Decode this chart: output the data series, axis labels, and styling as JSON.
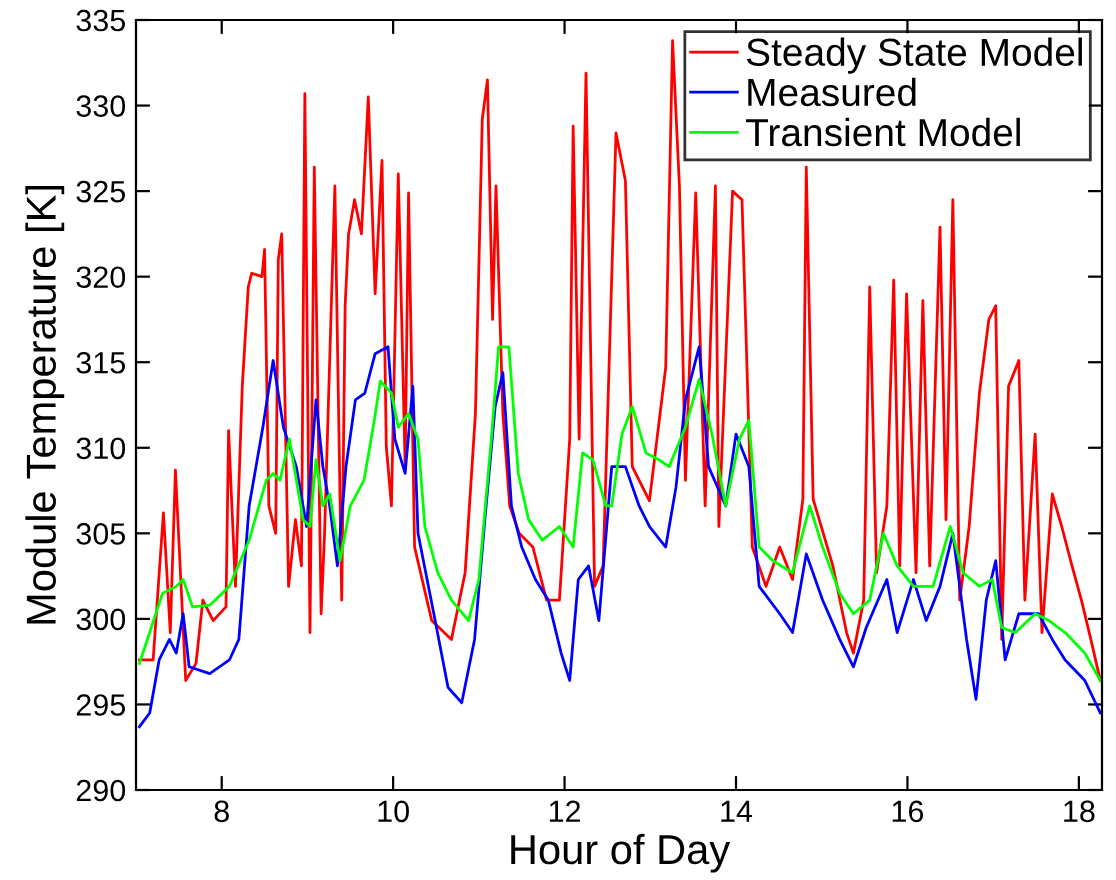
{
  "chart_data": {
    "type": "line",
    "xlabel": "Hour of Day",
    "ylabel": "Module Temperature [K]",
    "xlim": [
      7,
      18.27
    ],
    "ylim": [
      290,
      335
    ],
    "xticks": [
      8,
      10,
      12,
      14,
      16,
      18
    ],
    "yticks": [
      290,
      295,
      300,
      305,
      310,
      315,
      320,
      325,
      330,
      335
    ],
    "grid": false,
    "legend": "top right",
    "marker": "none",
    "line_style": "solid",
    "series": [
      {
        "name": "Steady State Model",
        "color": "#ff0000",
        "x": [
          7.04,
          7.2,
          7.32,
          7.4,
          7.46,
          7.58,
          7.7,
          7.78,
          7.9,
          8.05,
          8.08,
          8.16,
          8.24,
          8.31,
          8.35,
          8.47,
          8.5,
          8.55,
          8.63,
          8.66,
          8.7,
          8.78,
          8.86,
          8.93,
          8.97,
          9.03,
          9.08,
          9.16,
          9.2,
          9.32,
          9.4,
          9.44,
          9.48,
          9.55,
          9.63,
          9.71,
          9.79,
          9.87,
          9.92,
          9.98,
          10.06,
          10.14,
          10.18,
          10.25,
          10.45,
          10.68,
          10.84,
          10.96,
          11.04,
          11.1,
          11.16,
          11.2,
          11.28,
          11.36,
          11.47,
          11.63,
          11.79,
          11.94,
          12.06,
          12.1,
          12.17,
          12.25,
          12.35,
          12.45,
          12.6,
          12.71,
          12.79,
          12.99,
          13.18,
          13.26,
          13.34,
          13.41,
          13.53,
          13.64,
          13.76,
          13.8,
          13.96,
          14.07,
          14.19,
          14.35,
          14.51,
          14.66,
          14.78,
          14.82,
          14.9,
          15.13,
          15.29,
          15.37,
          15.49,
          15.56,
          15.64,
          15.76,
          15.84,
          15.91,
          15.99,
          16.1,
          16.18,
          16.26,
          16.38,
          16.45,
          16.53,
          16.61,
          16.72,
          16.84,
          16.95,
          17.03,
          17.1,
          17.18,
          17.3,
          17.37,
          17.49,
          17.57,
          17.69,
          17.8,
          17.92,
          18.03,
          18.14,
          18.25
        ],
        "values": [
          297.6,
          297.6,
          306.2,
          299.2,
          308.7,
          296.4,
          297.4,
          301.1,
          299.9,
          300.7,
          311.0,
          301.9,
          313.6,
          319.4,
          320.2,
          320.0,
          321.6,
          306.6,
          305.0,
          321.0,
          322.5,
          301.9,
          305.8,
          303.1,
          330.7,
          299.2,
          326.4,
          300.3,
          305.0,
          325.3,
          301.1,
          318.3,
          322.5,
          324.5,
          322.5,
          330.5,
          319.0,
          326.8,
          310.1,
          306.6,
          326.0,
          308.9,
          324.9,
          304.2,
          299.9,
          298.8,
          302.7,
          312.0,
          329.2,
          331.5,
          317.5,
          325.3,
          312.0,
          306.6,
          305.0,
          304.2,
          301.1,
          301.1,
          310.5,
          328.8,
          310.5,
          331.9,
          301.9,
          303.1,
          328.4,
          325.6,
          308.9,
          306.9,
          314.7,
          333.8,
          325.3,
          308.1,
          324.9,
          306.6,
          325.3,
          305.4,
          325.0,
          324.5,
          304.2,
          301.9,
          304.2,
          302.3,
          307.0,
          326.4,
          307.0,
          303.1,
          299.2,
          298.0,
          301.1,
          319.4,
          302.7,
          306.6,
          319.8,
          303.1,
          319.0,
          302.7,
          318.6,
          303.1,
          322.9,
          305.8,
          324.5,
          301.1,
          305.4,
          313.2,
          317.5,
          318.3,
          298.8,
          313.6,
          315.1,
          301.1,
          310.8,
          299.2,
          307.3,
          305.4,
          303.1,
          301.1,
          298.8,
          296.4
        ]
      },
      {
        "name": "Measured",
        "color": "#0000ff",
        "x": [
          7.04,
          7.16,
          7.27,
          7.39,
          7.47,
          7.55,
          7.62,
          7.86,
          8.09,
          8.2,
          8.32,
          8.48,
          8.6,
          8.72,
          8.87,
          8.99,
          9.1,
          9.18,
          9.26,
          9.35,
          9.45,
          9.56,
          9.67,
          9.79,
          9.94,
          10.02,
          10.14,
          10.23,
          10.29,
          10.49,
          10.64,
          10.8,
          10.95,
          11.07,
          11.19,
          11.28,
          11.38,
          11.5,
          11.66,
          11.81,
          11.96,
          12.06,
          12.16,
          12.28,
          12.4,
          12.55,
          12.71,
          12.87,
          12.99,
          13.18,
          13.3,
          13.41,
          13.57,
          13.68,
          13.88,
          14.0,
          14.15,
          14.27,
          14.51,
          14.66,
          14.82,
          15.01,
          15.21,
          15.37,
          15.52,
          15.76,
          15.88,
          16.07,
          16.22,
          16.38,
          16.53,
          16.69,
          16.8,
          16.92,
          17.03,
          17.14,
          17.3,
          17.53,
          17.69,
          17.84,
          18.07,
          18.25
        ],
        "values": [
          293.7,
          294.5,
          297.6,
          298.8,
          298.0,
          300.3,
          297.2,
          296.8,
          297.6,
          298.8,
          306.6,
          311.2,
          315.1,
          311.2,
          308.9,
          305.4,
          312.8,
          308.9,
          306.6,
          303.1,
          308.9,
          312.8,
          313.2,
          315.5,
          315.9,
          310.5,
          308.5,
          313.6,
          305.0,
          299.9,
          296.0,
          295.1,
          298.8,
          305.8,
          312.4,
          314.4,
          306.6,
          304.2,
          302.3,
          301.1,
          298.0,
          296.4,
          302.3,
          303.1,
          299.9,
          308.9,
          308.9,
          306.6,
          305.4,
          304.2,
          307.7,
          312.8,
          315.9,
          308.9,
          306.6,
          310.8,
          308.9,
          301.9,
          300.3,
          299.2,
          303.8,
          301.1,
          298.8,
          297.2,
          299.5,
          302.3,
          299.2,
          302.3,
          299.9,
          301.9,
          305.0,
          298.8,
          295.3,
          301.1,
          303.4,
          297.6,
          300.3,
          300.3,
          298.8,
          297.6,
          296.4,
          294.5
        ]
      },
      {
        "name": "Transient Model",
        "color": "#00ff00",
        "x": [
          7.04,
          7.31,
          7.47,
          7.55,
          7.66,
          7.86,
          8.09,
          8.32,
          8.52,
          8.6,
          8.68,
          8.79,
          8.95,
          9.03,
          9.1,
          9.18,
          9.26,
          9.38,
          9.5,
          9.66,
          9.78,
          9.85,
          9.98,
          10.06,
          10.18,
          10.29,
          10.37,
          10.52,
          10.68,
          10.88,
          11.0,
          11.15,
          11.23,
          11.35,
          11.46,
          11.58,
          11.74,
          11.94,
          12.1,
          12.21,
          12.33,
          12.48,
          12.55,
          12.67,
          12.79,
          12.95,
          13.1,
          13.22,
          13.41,
          13.57,
          13.72,
          13.88,
          14.04,
          14.15,
          14.27,
          14.43,
          14.66,
          14.86,
          15.01,
          15.21,
          15.37,
          15.56,
          15.72,
          15.88,
          16.07,
          16.3,
          16.5,
          16.65,
          16.84,
          16.99,
          17.1,
          17.26,
          17.49,
          17.65,
          17.84,
          18.07,
          18.25
        ],
        "values": [
          297.4,
          301.5,
          301.9,
          302.3,
          300.7,
          300.8,
          301.9,
          304.6,
          308.1,
          308.5,
          308.1,
          310.5,
          305.8,
          305.4,
          309.3,
          306.6,
          307.3,
          303.4,
          306.6,
          308.1,
          311.6,
          313.9,
          313.2,
          311.2,
          312.0,
          310.5,
          305.4,
          302.7,
          301.1,
          299.9,
          302.3,
          310.8,
          315.9,
          315.9,
          308.5,
          305.8,
          304.6,
          305.4,
          304.2,
          309.7,
          309.3,
          306.6,
          306.6,
          310.8,
          312.4,
          309.7,
          309.3,
          308.9,
          311.2,
          314.0,
          310.8,
          306.6,
          310.5,
          311.6,
          304.2,
          303.4,
          302.7,
          306.6,
          304.2,
          301.5,
          300.3,
          301.1,
          305.0,
          303.1,
          301.9,
          301.9,
          305.4,
          302.7,
          301.9,
          302.3,
          299.5,
          299.2,
          300.3,
          299.9,
          299.2,
          298.0,
          296.4
        ]
      }
    ]
  }
}
